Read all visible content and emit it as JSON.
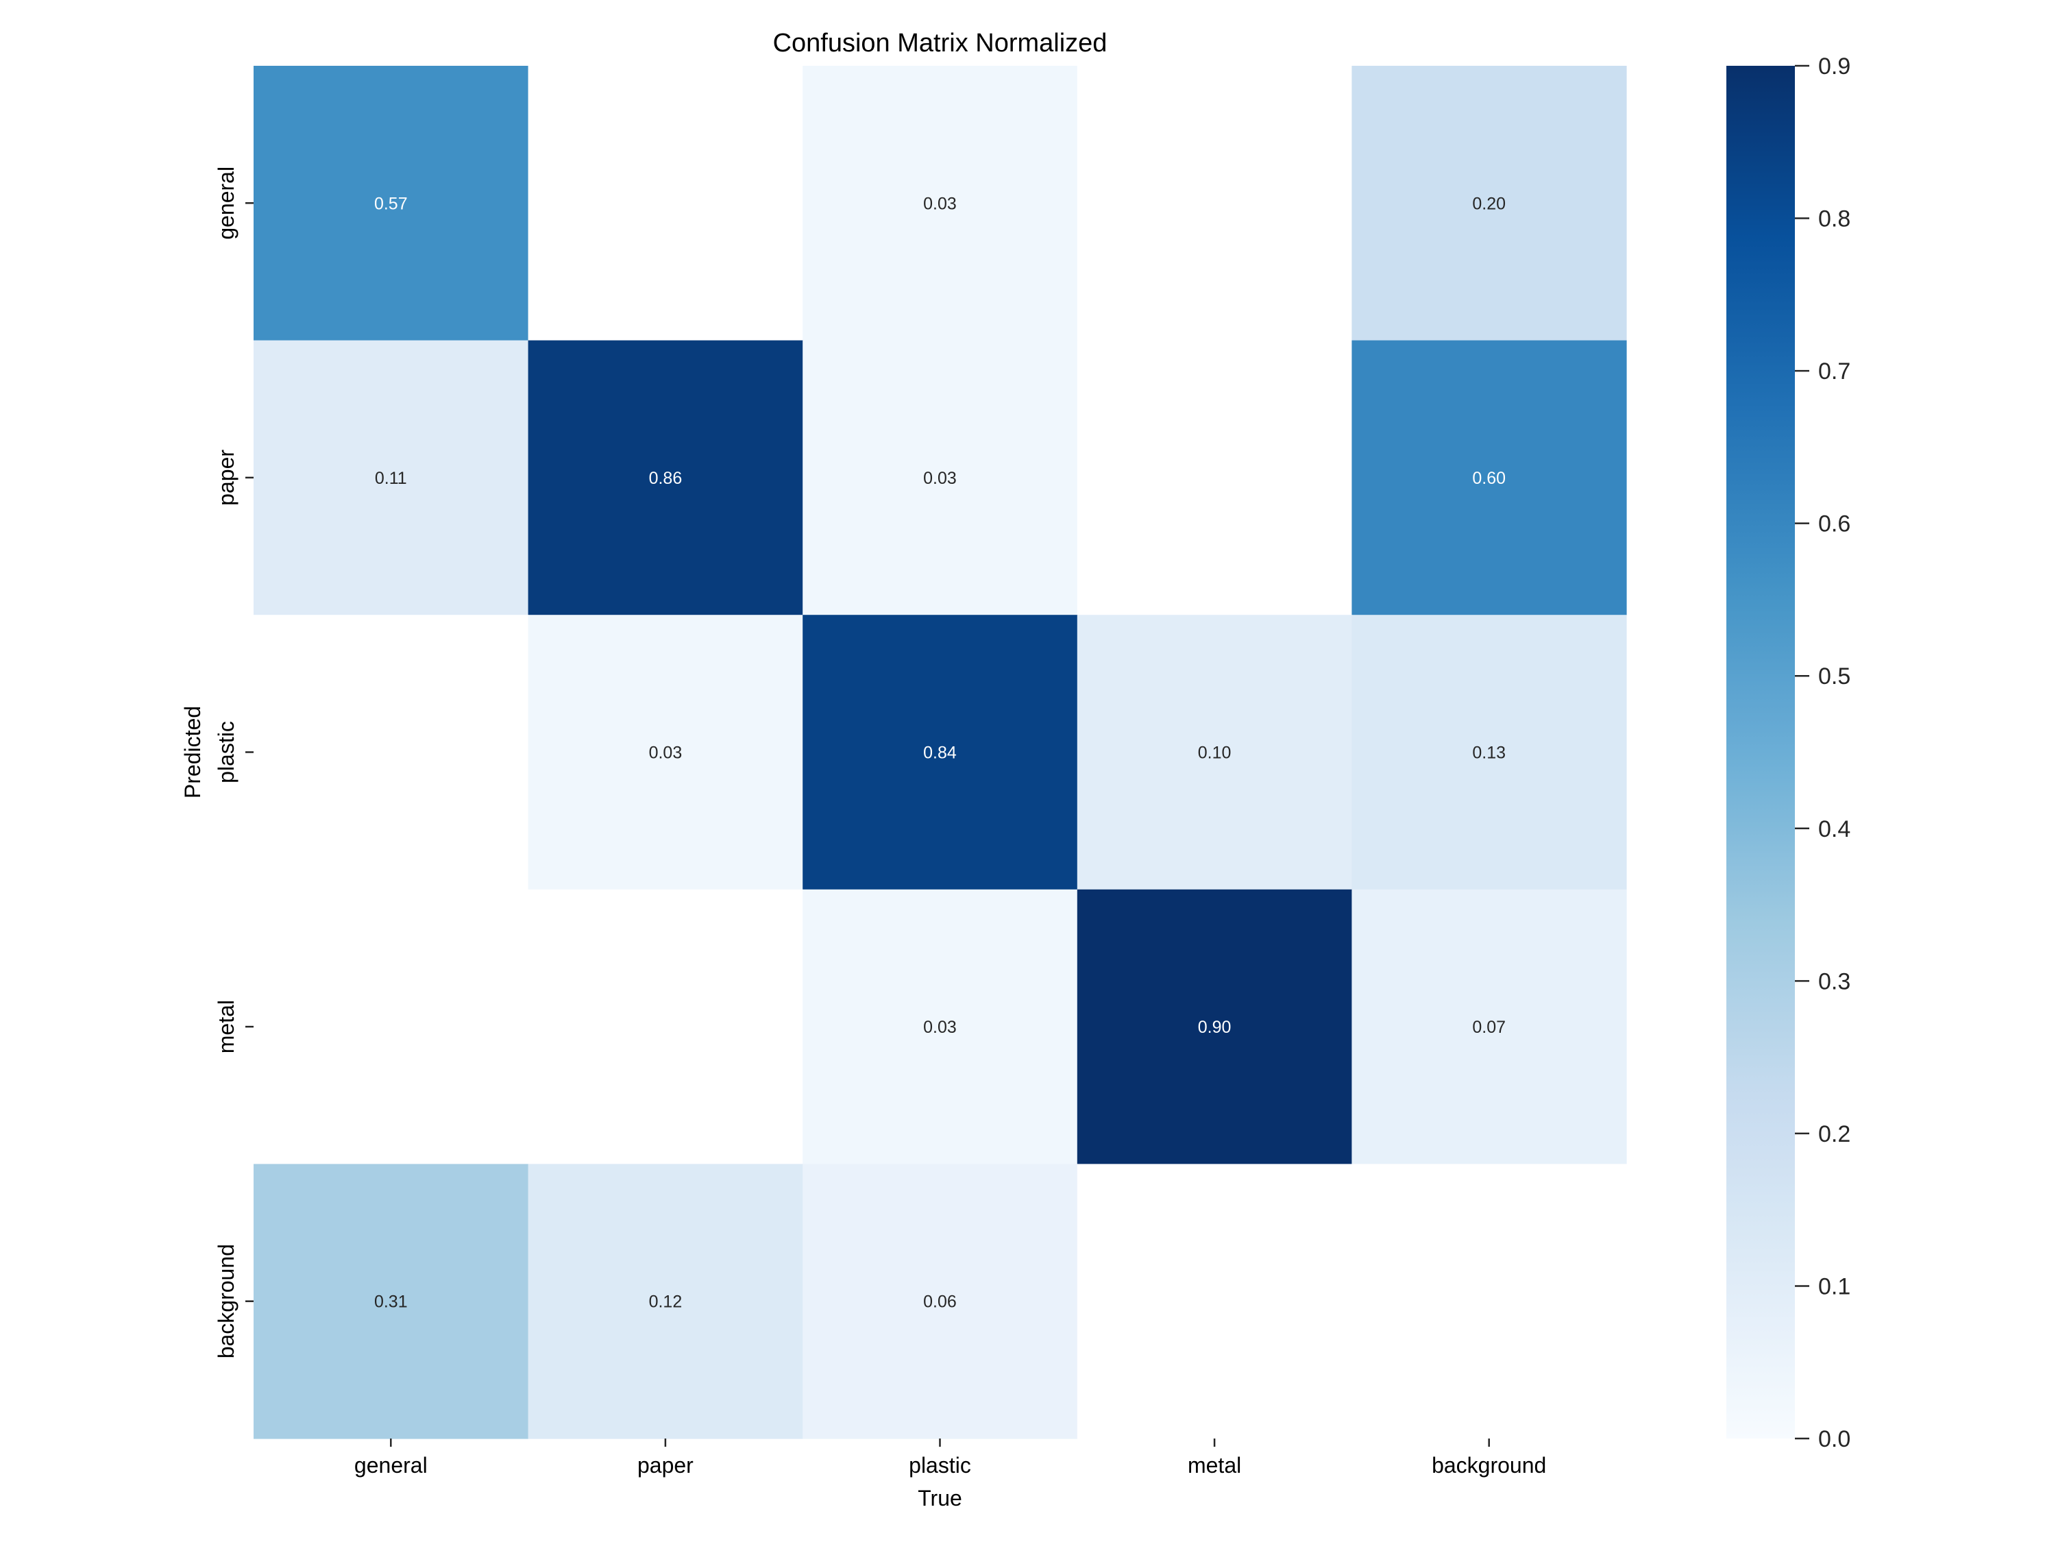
{
  "chart_data": {
    "type": "heatmap",
    "title": "Confusion Matrix Normalized",
    "xlabel": "True",
    "ylabel": "Predicted",
    "x_categories": [
      "general",
      "paper",
      "plastic",
      "metal",
      "background"
    ],
    "y_categories": [
      "general",
      "paper",
      "plastic",
      "metal",
      "background"
    ],
    "values": [
      [
        0.57,
        null,
        0.03,
        null,
        0.2
      ],
      [
        0.11,
        0.86,
        0.03,
        null,
        0.6
      ],
      [
        null,
        0.03,
        0.84,
        0.1,
        0.13
      ],
      [
        null,
        null,
        0.03,
        0.9,
        0.07
      ],
      [
        0.31,
        0.12,
        0.06,
        null,
        null
      ]
    ],
    "value_labels": [
      [
        "0.57",
        "",
        "0.03",
        "",
        "0.20"
      ],
      [
        "0.11",
        "0.86",
        "0.03",
        "",
        "0.60"
      ],
      [
        "",
        "0.03",
        "0.84",
        "0.10",
        "0.13"
      ],
      [
        "",
        "",
        "0.03",
        "0.90",
        "0.07"
      ],
      [
        "0.31",
        "0.12",
        "0.06",
        "",
        ""
      ]
    ],
    "colormap": "Blues",
    "vmin": 0.0,
    "vmax": 0.9,
    "colorbar": {
      "ticks": [
        0.0,
        0.1,
        0.2,
        0.3,
        0.4,
        0.5,
        0.6,
        0.7,
        0.8,
        0.9
      ],
      "tick_labels": [
        "0.0",
        "0.1",
        "0.2",
        "0.3",
        "0.4",
        "0.5",
        "0.6",
        "0.7",
        "0.8",
        "0.9"
      ],
      "placement": "right"
    },
    "colors": {
      "text_dark": "#262626",
      "text_light": "#ffffff",
      "empty_cell": "#ffffff"
    }
  }
}
